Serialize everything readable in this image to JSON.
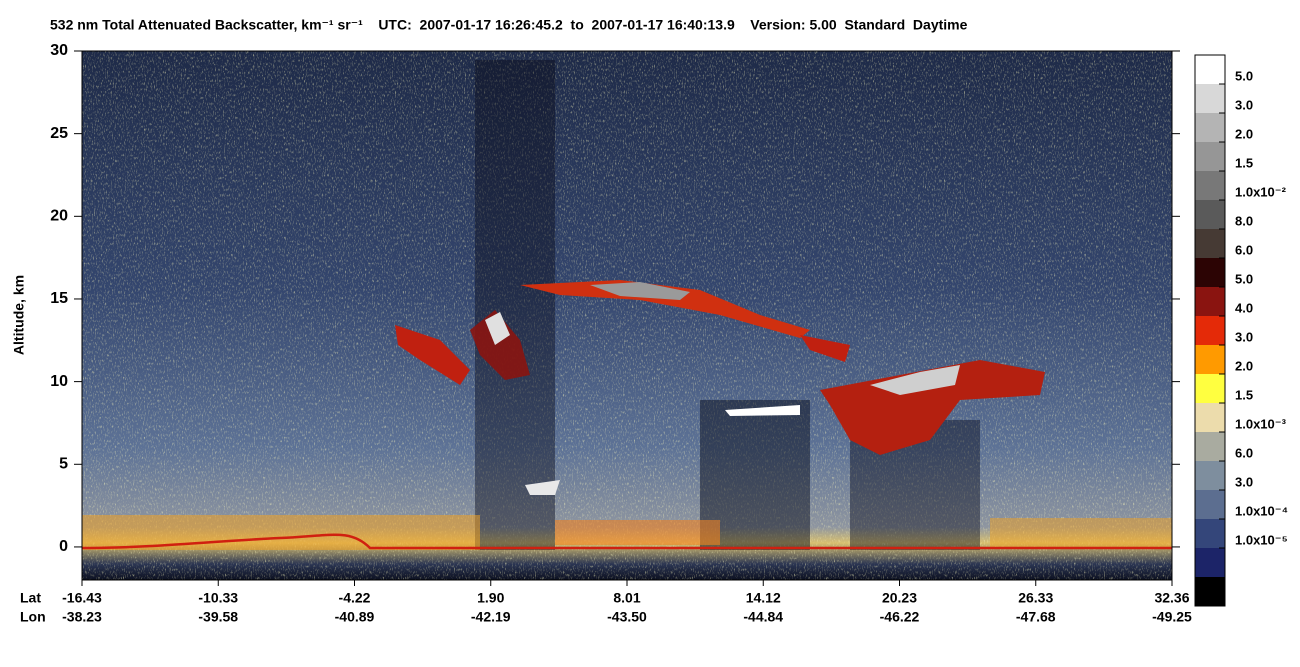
{
  "chart_data": {
    "type": "heatmap",
    "title": "532 nm Total Attenuated Backscatter, km⁻¹ sr⁻¹    UTC:  2007-01-17 16:26:45.2  to  2007-01-17 16:40:13.9    Version: 5.00  Standard  Daytime",
    "ylabel": "Altitude, km",
    "ylim": [
      -2,
      30
    ],
    "yticks": [
      0,
      5,
      10,
      15,
      20,
      25,
      30
    ],
    "xrows": [
      "Lat",
      "Lon"
    ],
    "lat": [
      -16.43,
      -10.33,
      -4.22,
      1.9,
      8.01,
      14.12,
      20.23,
      26.33,
      32.36
    ],
    "lon": [
      -38.23,
      -39.58,
      -40.89,
      -42.19,
      -43.5,
      -44.84,
      -46.22,
      -47.68,
      -49.25
    ],
    "colorbar": {
      "colors": [
        "#ffffff",
        "#d8d8d8",
        "#b4b4b4",
        "#969696",
        "#787878",
        "#5a5a5a",
        "#463a34",
        "#2c0404",
        "#8a1410",
        "#e42a08",
        "#ff9a00",
        "#ffff40",
        "#ecdcac",
        "#a9aba0",
        "#7e8e9e",
        "#5c6e90",
        "#34467a",
        "#1c2468",
        "#000000"
      ],
      "labels": [
        "5.0",
        "3.0",
        "2.0",
        "1.5",
        "1.0x10⁻²",
        "8.0",
        "6.0",
        "5.0",
        "4.0",
        "3.0",
        "2.0",
        "1.5",
        "1.0x10⁻³",
        "6.0",
        "3.0",
        "1.0x10⁻⁴",
        "1.0x10⁻⁵"
      ]
    }
  }
}
